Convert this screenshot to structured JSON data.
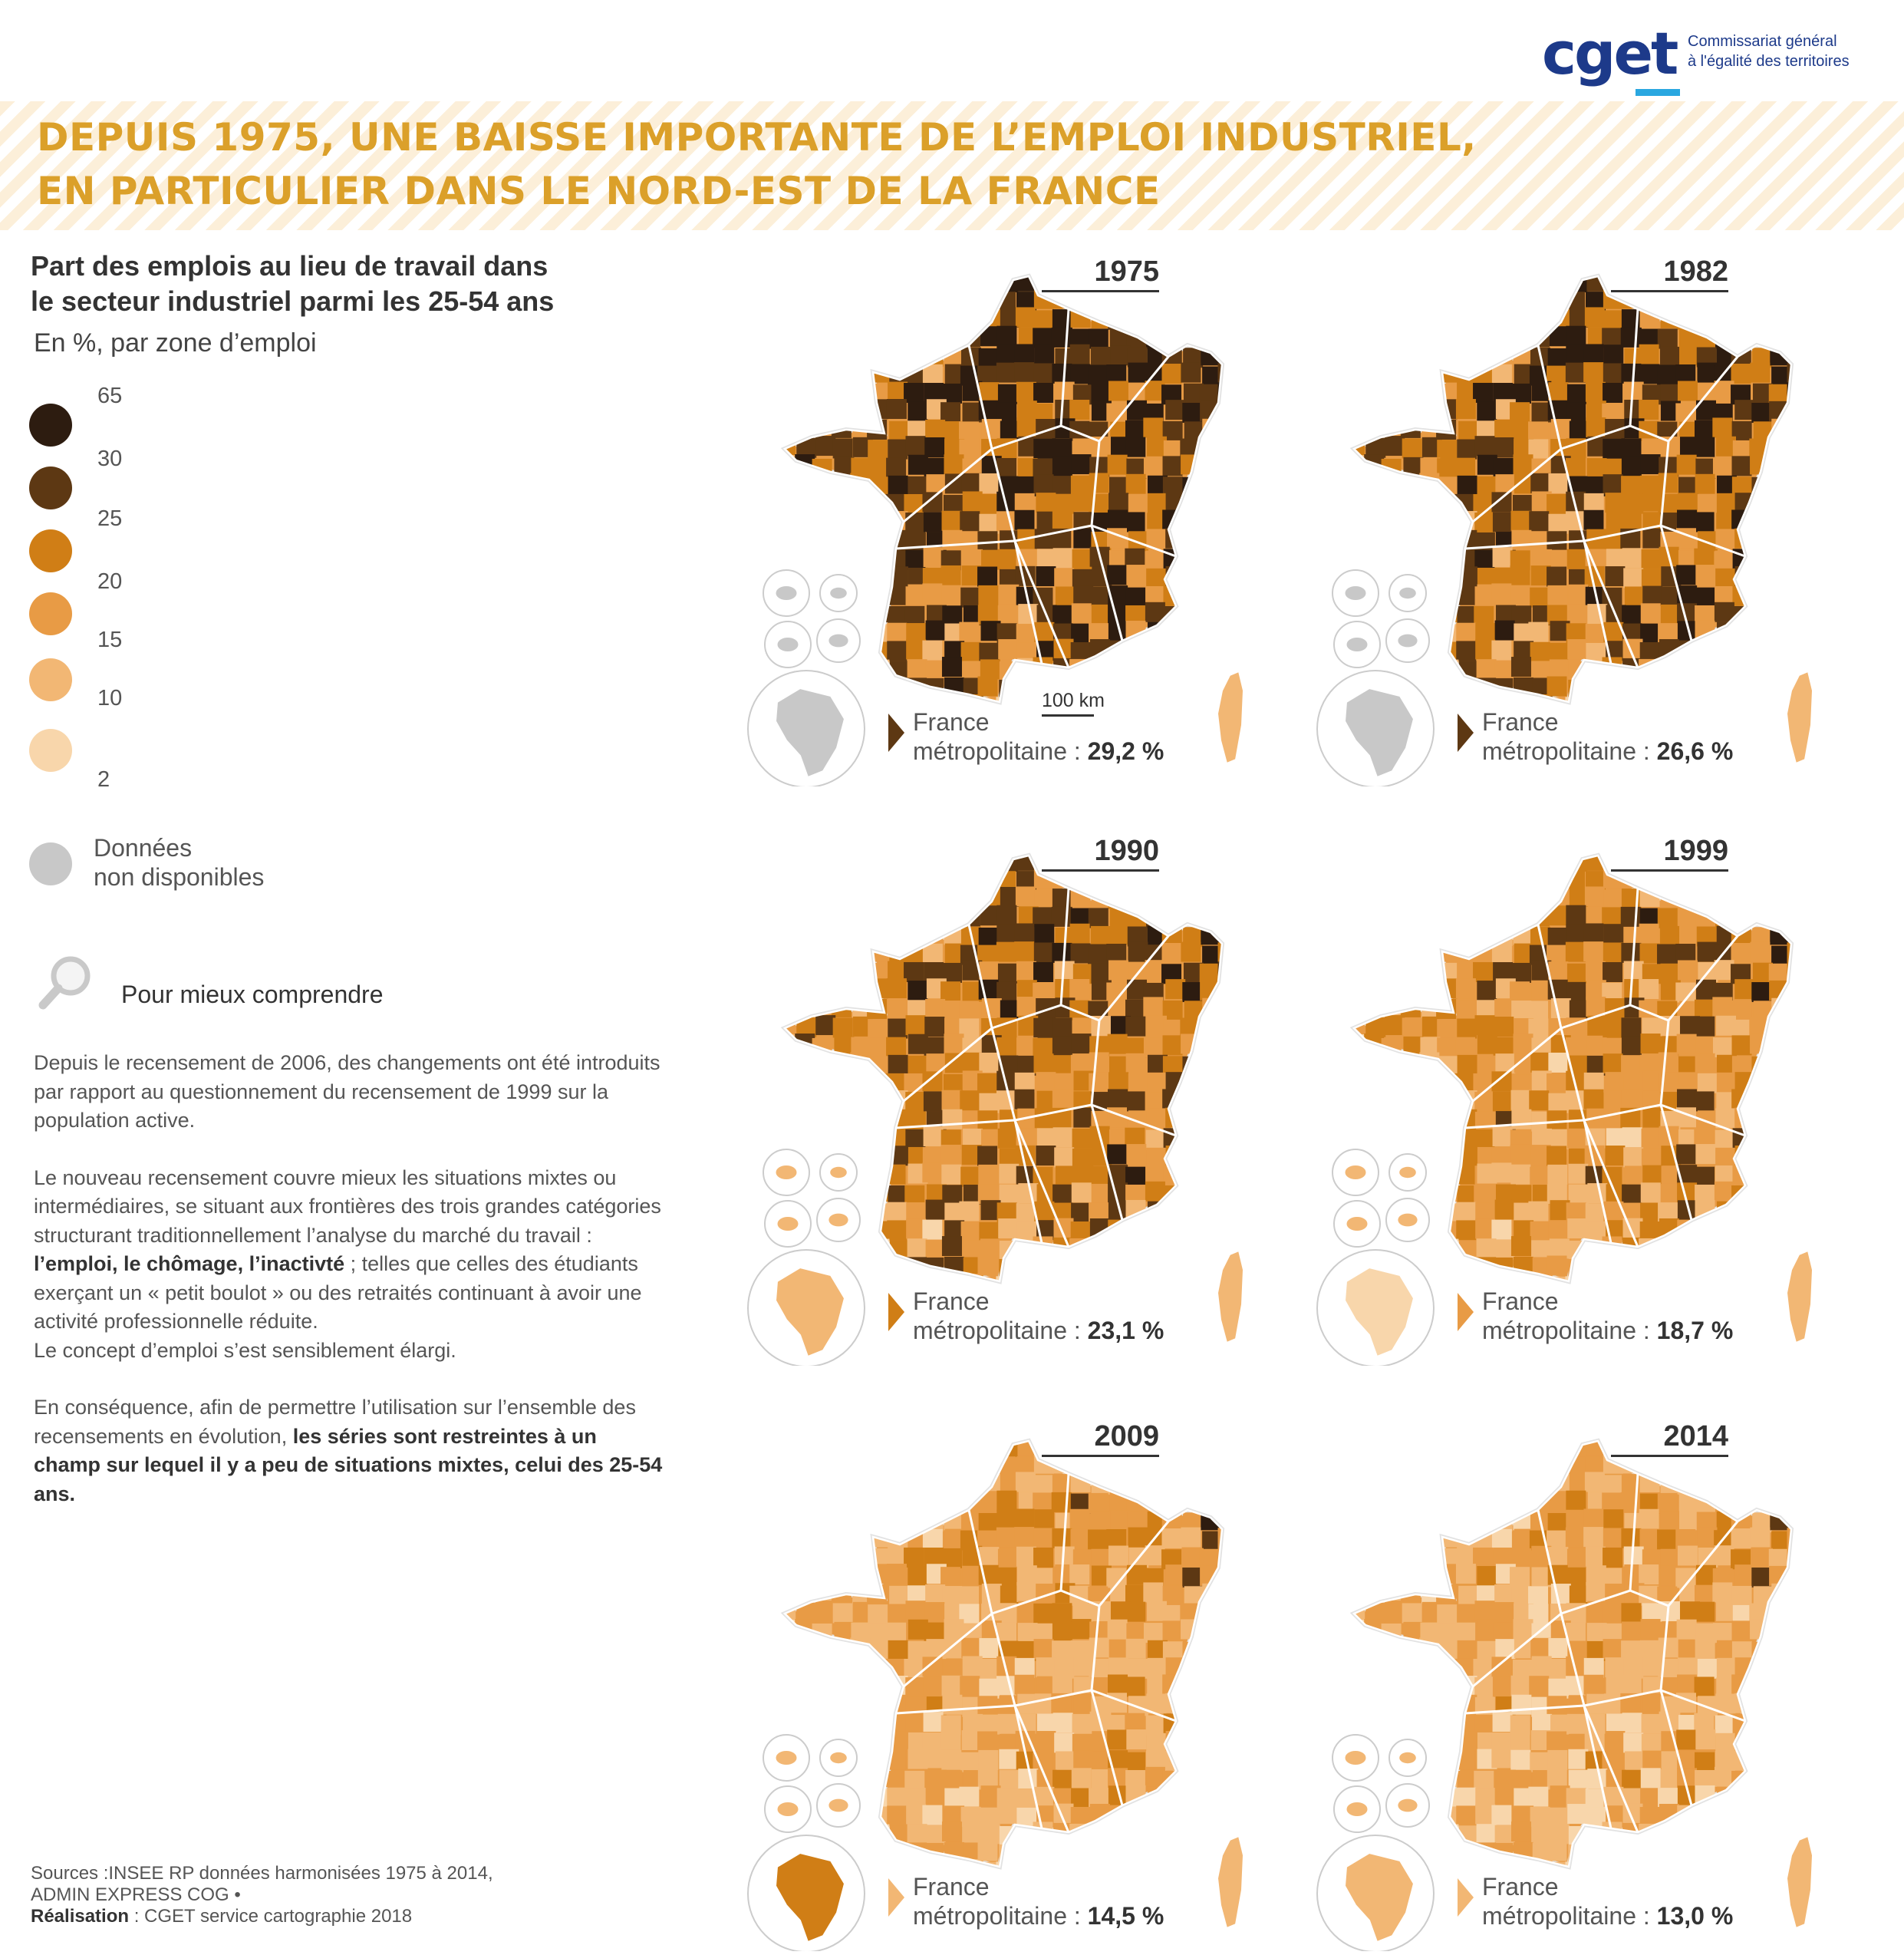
{
  "logo": {
    "word": "cget",
    "line1": "Commissariat général",
    "line2": "à l'égalité des territoires"
  },
  "title": {
    "line1": "DEPUIS 1975, UNE BAISSE IMPORTANTE DE L’EMPLOI INDUSTRIEL,",
    "line2": "EN PARTICULIER DANS LE NORD-EST DE LA FRANCE"
  },
  "legend": {
    "title_line1": "Part des emplois au lieu de travail dans",
    "title_line2": "le secteur industriel parmi les 25-54 ans",
    "subtitle": "En %, par zone d’emploi",
    "thresholds": [
      "65",
      "30",
      "25",
      "20",
      "15",
      "10",
      "2"
    ],
    "class_colors": [
      "#2d1c10",
      "#5d3813",
      "#d07e16",
      "#e89b45",
      "#f2b774",
      "#f8d6ab"
    ],
    "no_data_color": "#c8c8c8",
    "no_data_line1": "Données",
    "no_data_line2": "non disponibles"
  },
  "explainer": {
    "icon": "magnifier-icon",
    "heading": "Pour mieux comprendre",
    "p1": "Depuis le recensement de 2006, des changements ont été introduits par rapport au questionnement du recensement de 1999 sur la population active.",
    "p2_a": "Le nouveau recensement couvre mieux les situations mixtes ou intermédiaires, se situant aux frontières des trois grandes catégories structurant traditionnellement l’analyse du marché du travail : ",
    "p2_bold": "l’emploi, le chômage, l’inactivté",
    "p2_b": " ; telles que celles des étudiants exerçant un « petit boulot » ou des retraités continuant à avoir une activité professionnelle réduite.",
    "p2_c": "Le concept d’emploi s’est sensiblement élargi.",
    "p3_a": "En conséquence, afin de permettre l’utilisation sur l’ensemble des recensements en évolution, ",
    "p3_bold": "les séries sont restreintes à un champ sur lequel il y a peu de situations mixtes, celui des 25-54 ans."
  },
  "sources": {
    "label": "Sources :",
    "text1": "INSEE RP données harmonisées 1975 à 2014,",
    "text2": "ADMIN EXPRESS COG •",
    "credit_label": "Réalisation",
    "credit": " : CGET service cartographie 2018"
  },
  "scale_label": "100 km",
  "france_label_line1": "France",
  "france_label_line2": "métropolitaine : ",
  "maps": [
    {
      "year": "1975",
      "value": "29,2 %",
      "arrow_color": "#5d3813",
      "guyane_color": "#c8c8c8",
      "weights": [
        0.32,
        0.24,
        0.18,
        0.13,
        0.09,
        0.04
      ]
    },
    {
      "year": "1982",
      "value": "26,6 %",
      "arrow_color": "#5d3813",
      "guyane_color": "#c8c8c8",
      "weights": [
        0.26,
        0.22,
        0.22,
        0.15,
        0.11,
        0.04
      ]
    },
    {
      "year": "1990",
      "value": "23,1 %",
      "arrow_color": "#d07e16",
      "guyane_color": "#f2b774",
      "weights": [
        0.14,
        0.2,
        0.26,
        0.2,
        0.14,
        0.06
      ]
    },
    {
      "year": "1999",
      "value": "18,7 %",
      "arrow_color": "#e89b45",
      "guyane_color": "#f8d6ab",
      "weights": [
        0.06,
        0.14,
        0.24,
        0.24,
        0.22,
        0.1
      ]
    },
    {
      "year": "2009",
      "value": "14,5 %",
      "arrow_color": "#f2b774",
      "guyane_color": "#d07e16",
      "weights": [
        0.02,
        0.05,
        0.15,
        0.3,
        0.32,
        0.16
      ]
    },
    {
      "year": "2014",
      "value": "13,0 %",
      "arrow_color": "#f2b774",
      "guyane_color": "#f2b774",
      "weights": [
        0.01,
        0.04,
        0.12,
        0.27,
        0.34,
        0.22
      ]
    }
  ]
}
